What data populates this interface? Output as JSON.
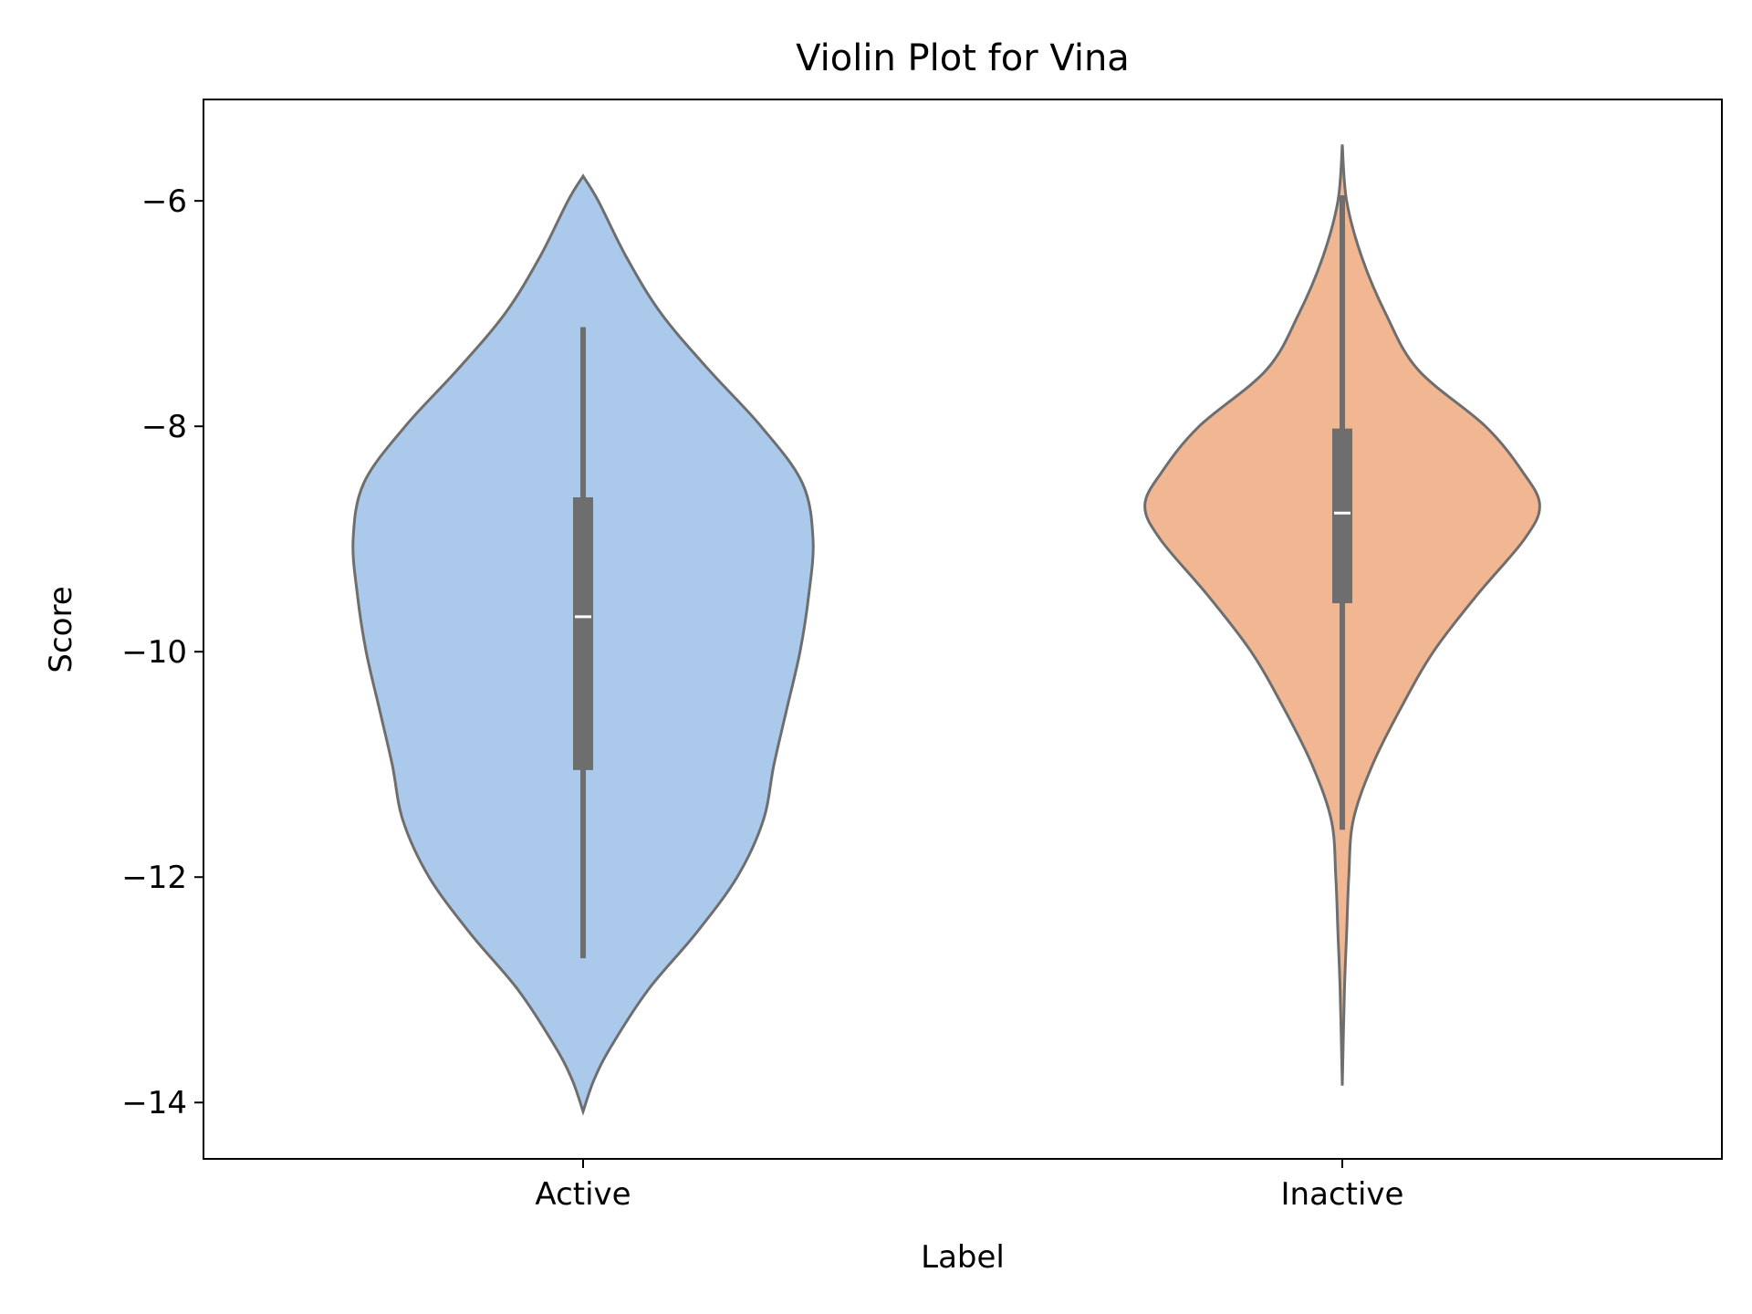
{
  "chart_data": {
    "type": "violin",
    "title": "Violin Plot for Vina",
    "xlabel": "Label",
    "ylabel": "Score",
    "categories": [
      "Active",
      "Inactive"
    ],
    "ylim": [
      -14.5,
      -5.1
    ],
    "yticks": [
      -6,
      -8,
      -10,
      -12,
      -14
    ],
    "ytick_labels": [
      "−6",
      "−8",
      "−10",
      "−12",
      "−14"
    ],
    "grid": false,
    "violins": [
      {
        "label": "Active",
        "color": "#abc9ea",
        "min": -14.08,
        "max": -5.78,
        "whisker_low": -12.72,
        "q1": -11.05,
        "median": -9.69,
        "q3": -8.63,
        "whisker_high": -7.12,
        "density_profile": [
          [
            -14.08,
            0.0
          ],
          [
            -13.8,
            0.05
          ],
          [
            -13.5,
            0.13
          ],
          [
            -13.0,
            0.3
          ],
          [
            -12.5,
            0.52
          ],
          [
            -12.0,
            0.71
          ],
          [
            -11.5,
            0.83
          ],
          [
            -11.0,
            0.88
          ],
          [
            -10.5,
            0.94
          ],
          [
            -10.0,
            1.0
          ],
          [
            -9.5,
            1.04
          ],
          [
            -9.0,
            1.06
          ],
          [
            -8.5,
            1.01
          ],
          [
            -8.0,
            0.82
          ],
          [
            -7.5,
            0.58
          ],
          [
            -7.0,
            0.36
          ],
          [
            -6.5,
            0.2
          ],
          [
            -6.0,
            0.07
          ],
          [
            -5.78,
            0.0
          ]
        ]
      },
      {
        "label": "Inactive",
        "color": "#f0b792",
        "min": -13.85,
        "max": -5.5,
        "whisker_low": -11.58,
        "q1": -9.57,
        "median": -8.77,
        "q3": -8.02,
        "whisker_high": -5.95,
        "density_profile": [
          [
            -13.85,
            0.0
          ],
          [
            -13.0,
            0.01
          ],
          [
            -12.5,
            0.02
          ],
          [
            -12.0,
            0.03
          ],
          [
            -11.5,
            0.05
          ],
          [
            -11.0,
            0.14
          ],
          [
            -10.5,
            0.27
          ],
          [
            -10.0,
            0.42
          ],
          [
            -9.5,
            0.62
          ],
          [
            -9.0,
            0.84
          ],
          [
            -8.7,
            0.91
          ],
          [
            -8.4,
            0.83
          ],
          [
            -8.0,
            0.66
          ],
          [
            -7.5,
            0.35
          ],
          [
            -7.0,
            0.2
          ],
          [
            -6.5,
            0.09
          ],
          [
            -6.0,
            0.02
          ],
          [
            -5.5,
            0.0
          ]
        ]
      }
    ],
    "colors": {
      "outline": "#6e6e6e",
      "box": "#6e6e6e",
      "median": "#ffffff"
    }
  }
}
